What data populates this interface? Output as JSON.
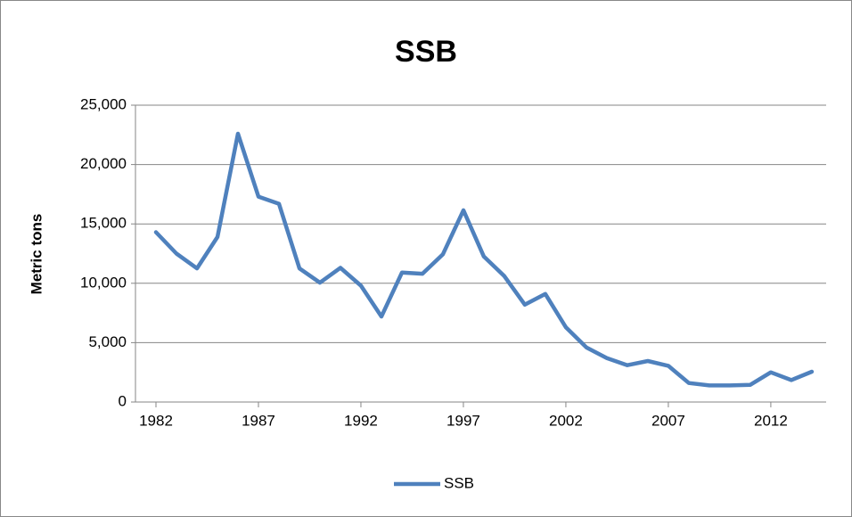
{
  "chart_data": {
    "type": "line",
    "title": "SSB",
    "y_label": "Metric tons",
    "x": [
      1982,
      1983,
      1984,
      1985,
      1986,
      1987,
      1988,
      1989,
      1990,
      1991,
      1992,
      1993,
      1994,
      1995,
      1996,
      1997,
      1998,
      1999,
      2000,
      2001,
      2002,
      2003,
      2004,
      2005,
      2006,
      2007,
      2008,
      2009,
      2010,
      2011,
      2012,
      2013,
      2014
    ],
    "series": [
      {
        "name": "SSB",
        "color": "#4f81bd",
        "values": [
          14300,
          12500,
          11250,
          13900,
          22600,
          17300,
          16700,
          11250,
          10050,
          11300,
          9800,
          7200,
          10900,
          10800,
          12450,
          16150,
          12250,
          10600,
          8200,
          9100,
          6300,
          4600,
          3700,
          3100,
          3450,
          3050,
          1600,
          1400,
          1400,
          1450,
          2500,
          1850,
          2550
        ]
      }
    ],
    "xlim": [
      1981,
      2014.7
    ],
    "xticks": [
      1982,
      1987,
      1992,
      1997,
      2002,
      2007,
      2012
    ],
    "ylim": [
      0,
      25000
    ],
    "yticks": [
      0,
      {
        "value": 5000,
        "label": "5,000"
      },
      {
        "value": 10000,
        "label": "10,000"
      },
      {
        "value": 15000,
        "label": "15,000"
      },
      {
        "value": 20000,
        "label": "20,000"
      },
      {
        "value": 25000,
        "label": "25,000"
      }
    ],
    "grid": true,
    "legend": "bottom"
  }
}
